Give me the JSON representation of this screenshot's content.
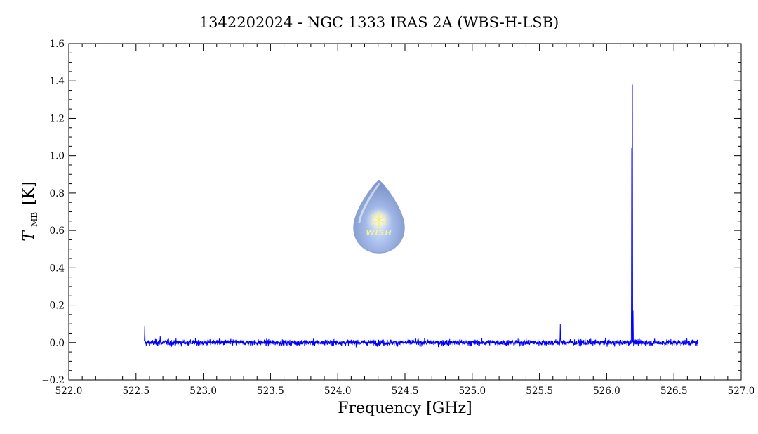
{
  "chart_data": {
    "type": "line",
    "title": "1342202024 - NGC 1333 IRAS 2A (WBS-H-LSB)",
    "xlabel": "Frequency [GHz]",
    "ylabel": {
      "symbol": "T",
      "subscript": "MB",
      "unit": "[K]"
    },
    "xlim": [
      522.0,
      527.0
    ],
    "ylim": [
      -0.2,
      1.6
    ],
    "x_ticks": [
      "522.0",
      "522.5",
      "523.0",
      "523.5",
      "524.0",
      "524.5",
      "525.0",
      "525.5",
      "526.0",
      "526.5",
      "527.0"
    ],
    "y_ticks": [
      "-0.2",
      "0.0",
      "0.2",
      "0.4",
      "0.6",
      "0.8",
      "1.0",
      "1.2",
      "1.4",
      "1.6"
    ],
    "series": [
      {
        "color": "#0000ff",
        "x_range": [
          522.56,
          526.68
        ],
        "baseline": 0.0,
        "noise_rms": 0.008,
        "features": [
          {
            "x": 522.565,
            "y": 0.09
          },
          {
            "x": 522.68,
            "y": 0.035
          },
          {
            "x": 525.655,
            "y": 0.1
          },
          {
            "x": 526.186,
            "y": 1.04
          },
          {
            "x": 526.191,
            "y": 1.38
          },
          {
            "x": 526.196,
            "y": 0.17
          }
        ]
      }
    ],
    "grid": false,
    "logo": {
      "text": "WISH"
    }
  }
}
